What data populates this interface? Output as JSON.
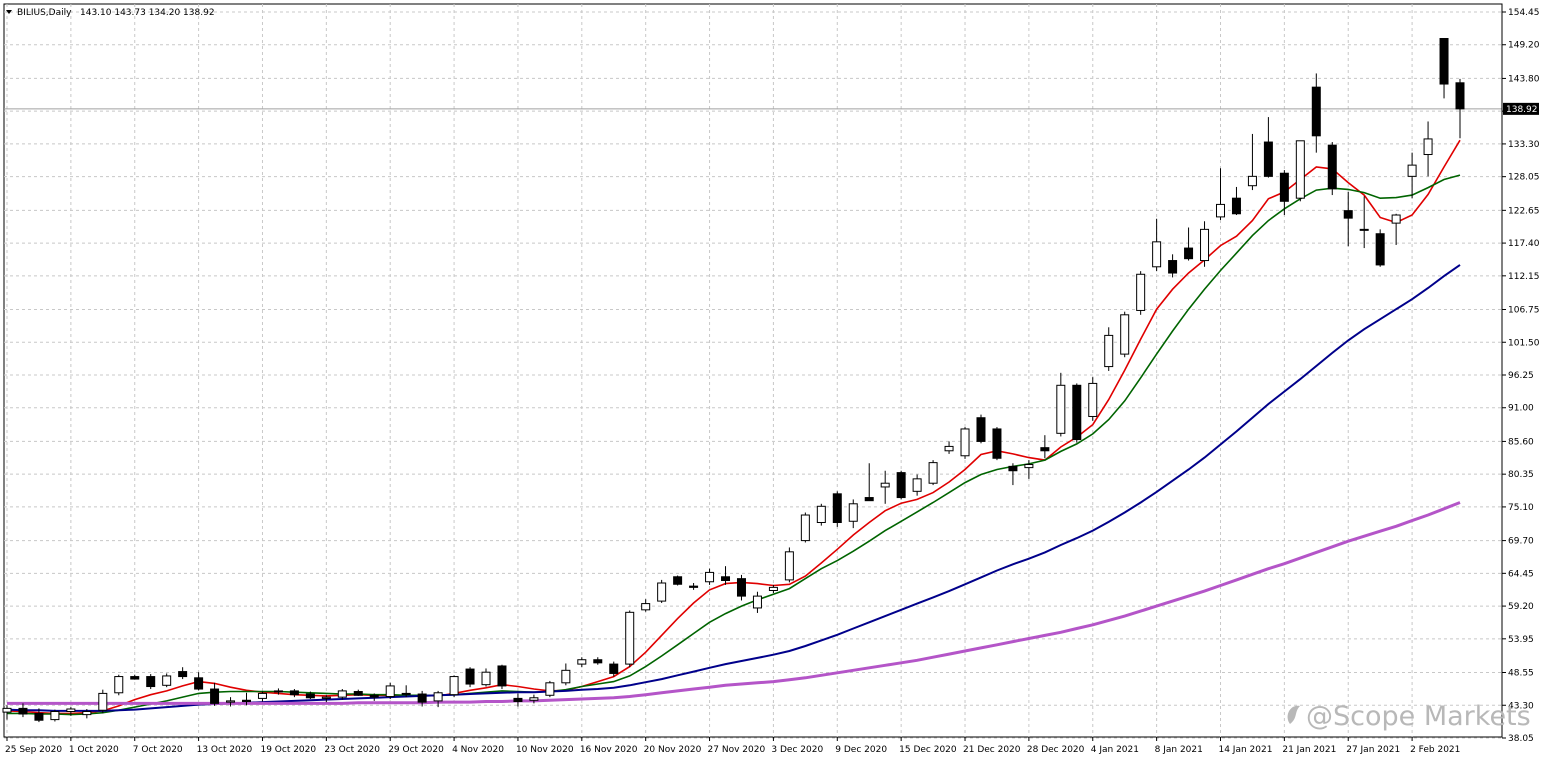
{
  "header": {
    "symbol": "BILIUS,Daily",
    "ohlc": "143.10 143.73 134.20 138.92"
  },
  "watermark": "@Scope Markets",
  "current_price_label": "138.92",
  "colors": {
    "background": "#ffffff",
    "grid": "#c8c8c8",
    "candle_body_bear": "#000000",
    "candle_body_bull": "#ffffff",
    "candle_outline": "#000000",
    "ma_fast": "#e00000",
    "ma_mid": "#006400",
    "ma_slow": "#00008b",
    "ma_long": "#b455c8",
    "price_line": "#a0a0a0"
  },
  "chart_data": {
    "type": "candlestick",
    "ylim": [
      38.05,
      154.45
    ],
    "grid": true,
    "y_ticks": [
      "154.45",
      "149.20",
      "143.80",
      "138.55",
      "133.30",
      "128.05",
      "122.65",
      "117.40",
      "112.15",
      "106.75",
      "101.50",
      "96.25",
      "91.00",
      "85.60",
      "80.35",
      "75.10",
      "69.70",
      "64.45",
      "59.20",
      "53.95",
      "48.55",
      "43.30",
      "38.05"
    ],
    "x_ticks": [
      {
        "index": 0,
        "label": "25 Sep 2020"
      },
      {
        "index": 4,
        "label": "1 Oct 2020"
      },
      {
        "index": 8,
        "label": "7 Oct 2020"
      },
      {
        "index": 12,
        "label": "13 Oct 2020"
      },
      {
        "index": 16,
        "label": "19 Oct 2020"
      },
      {
        "index": 20,
        "label": "23 Oct 2020"
      },
      {
        "index": 24,
        "label": "29 Oct 2020"
      },
      {
        "index": 28,
        "label": "4 Nov 2020"
      },
      {
        "index": 32,
        "label": "10 Nov 2020"
      },
      {
        "index": 36,
        "label": "16 Nov 2020"
      },
      {
        "index": 40,
        "label": "20 Nov 2020"
      },
      {
        "index": 44,
        "label": "27 Nov 2020"
      },
      {
        "index": 48,
        "label": "3 Dec 2020"
      },
      {
        "index": 52,
        "label": "9 Dec 2020"
      },
      {
        "index": 56,
        "label": "15 Dec 2020"
      },
      {
        "index": 60,
        "label": "21 Dec 2020"
      },
      {
        "index": 64,
        "label": "28 Dec 2020"
      },
      {
        "index": 68,
        "label": "4 Jan 2021"
      },
      {
        "index": 72,
        "label": "8 Jan 2021"
      },
      {
        "index": 76,
        "label": "14 Jan 2021"
      },
      {
        "index": 80,
        "label": "21 Jan 2021"
      },
      {
        "index": 84,
        "label": "27 Jan 2021"
      },
      {
        "index": 88,
        "label": "2 Feb 2021"
      }
    ],
    "candles": [
      {
        "o": 42.2,
        "h": 43.3,
        "l": 41.0,
        "c": 42.8
      },
      {
        "o": 42.8,
        "h": 43.6,
        "l": 41.4,
        "c": 41.9
      },
      {
        "o": 42.0,
        "h": 42.8,
        "l": 40.6,
        "c": 40.9
      },
      {
        "o": 41.0,
        "h": 42.6,
        "l": 40.7,
        "c": 42.3
      },
      {
        "o": 42.3,
        "h": 43.0,
        "l": 41.6,
        "c": 42.7
      },
      {
        "o": 41.8,
        "h": 42.7,
        "l": 41.2,
        "c": 42.3
      },
      {
        "o": 42.5,
        "h": 45.8,
        "l": 42.0,
        "c": 45.2
      },
      {
        "o": 45.3,
        "h": 48.2,
        "l": 44.9,
        "c": 47.9
      },
      {
        "o": 47.9,
        "h": 48.2,
        "l": 47.4,
        "c": 47.5
      },
      {
        "o": 47.9,
        "h": 48.3,
        "l": 45.9,
        "c": 46.3
      },
      {
        "o": 46.5,
        "h": 48.4,
        "l": 46.2,
        "c": 48.0
      },
      {
        "o": 48.7,
        "h": 49.4,
        "l": 47.5,
        "c": 47.9
      },
      {
        "o": 47.7,
        "h": 48.6,
        "l": 45.7,
        "c": 45.9
      },
      {
        "o": 45.9,
        "h": 46.9,
        "l": 43.2,
        "c": 43.6
      },
      {
        "o": 43.8,
        "h": 44.6,
        "l": 43.1,
        "c": 44.0
      },
      {
        "o": 44.1,
        "h": 45.3,
        "l": 43.3,
        "c": 43.9
      },
      {
        "o": 44.4,
        "h": 45.5,
        "l": 43.9,
        "c": 45.2
      },
      {
        "o": 45.6,
        "h": 46.0,
        "l": 45.0,
        "c": 45.5
      },
      {
        "o": 45.6,
        "h": 45.9,
        "l": 44.6,
        "c": 45.0
      },
      {
        "o": 45.1,
        "h": 45.5,
        "l": 44.3,
        "c": 44.5
      },
      {
        "o": 44.4,
        "h": 44.9,
        "l": 43.8,
        "c": 44.6
      },
      {
        "o": 44.6,
        "h": 45.9,
        "l": 44.2,
        "c": 45.6
      },
      {
        "o": 45.5,
        "h": 45.8,
        "l": 44.8,
        "c": 44.9
      },
      {
        "o": 44.9,
        "h": 45.2,
        "l": 44.0,
        "c": 44.6
      },
      {
        "o": 44.7,
        "h": 46.9,
        "l": 44.3,
        "c": 46.4
      },
      {
        "o": 45.2,
        "h": 46.5,
        "l": 44.6,
        "c": 45.1
      },
      {
        "o": 45.1,
        "h": 45.6,
        "l": 43.1,
        "c": 43.8
      },
      {
        "o": 44.0,
        "h": 45.6,
        "l": 43.0,
        "c": 45.3
      },
      {
        "o": 45.0,
        "h": 48.1,
        "l": 44.6,
        "c": 47.9
      },
      {
        "o": 49.1,
        "h": 49.4,
        "l": 46.2,
        "c": 46.7
      },
      {
        "o": 46.6,
        "h": 49.2,
        "l": 46.3,
        "c": 48.6
      },
      {
        "o": 49.6,
        "h": 49.8,
        "l": 45.9,
        "c": 46.4
      },
      {
        "o": 44.4,
        "h": 45.2,
        "l": 43.1,
        "c": 43.9
      },
      {
        "o": 44.1,
        "h": 45.0,
        "l": 43.6,
        "c": 44.5
      },
      {
        "o": 44.9,
        "h": 47.2,
        "l": 44.6,
        "c": 46.9
      },
      {
        "o": 46.9,
        "h": 50.0,
        "l": 46.5,
        "c": 48.9
      },
      {
        "o": 49.9,
        "h": 51.0,
        "l": 49.4,
        "c": 50.6
      },
      {
        "o": 50.6,
        "h": 51.0,
        "l": 49.8,
        "c": 50.1
      },
      {
        "o": 49.9,
        "h": 50.3,
        "l": 47.9,
        "c": 48.4
      },
      {
        "o": 49.9,
        "h": 58.5,
        "l": 49.4,
        "c": 58.2
      },
      {
        "o": 58.6,
        "h": 60.3,
        "l": 58.3,
        "c": 59.6
      },
      {
        "o": 60.0,
        "h": 63.4,
        "l": 59.7,
        "c": 62.9
      },
      {
        "o": 63.9,
        "h": 64.1,
        "l": 62.5,
        "c": 62.7
      },
      {
        "o": 62.4,
        "h": 62.9,
        "l": 61.8,
        "c": 62.2
      },
      {
        "o": 63.1,
        "h": 65.2,
        "l": 62.6,
        "c": 64.6
      },
      {
        "o": 63.9,
        "h": 65.6,
        "l": 62.6,
        "c": 63.3
      },
      {
        "o": 63.6,
        "h": 64.2,
        "l": 60.1,
        "c": 60.8
      },
      {
        "o": 58.9,
        "h": 61.5,
        "l": 58.1,
        "c": 60.8
      },
      {
        "o": 61.7,
        "h": 62.6,
        "l": 61.3,
        "c": 62.2
      },
      {
        "o": 63.4,
        "h": 68.6,
        "l": 63.0,
        "c": 67.9
      },
      {
        "o": 69.7,
        "h": 74.2,
        "l": 69.4,
        "c": 73.8
      },
      {
        "o": 72.6,
        "h": 75.6,
        "l": 72.1,
        "c": 75.2
      },
      {
        "o": 77.2,
        "h": 77.6,
        "l": 71.9,
        "c": 72.6
      },
      {
        "o": 72.8,
        "h": 76.3,
        "l": 71.7,
        "c": 75.6
      },
      {
        "o": 76.6,
        "h": 82.1,
        "l": 76.2,
        "c": 76.1
      },
      {
        "o": 78.3,
        "h": 80.9,
        "l": 75.6,
        "c": 78.9
      },
      {
        "o": 80.6,
        "h": 80.9,
        "l": 76.3,
        "c": 76.6
      },
      {
        "o": 77.6,
        "h": 80.3,
        "l": 76.9,
        "c": 79.6
      },
      {
        "o": 78.9,
        "h": 82.6,
        "l": 78.6,
        "c": 82.2
      },
      {
        "o": 84.1,
        "h": 85.6,
        "l": 83.6,
        "c": 84.8
      },
      {
        "o": 83.3,
        "h": 87.9,
        "l": 82.8,
        "c": 87.6
      },
      {
        "o": 89.4,
        "h": 89.9,
        "l": 85.3,
        "c": 85.6
      },
      {
        "o": 87.6,
        "h": 87.9,
        "l": 82.6,
        "c": 82.9
      },
      {
        "o": 81.6,
        "h": 82.1,
        "l": 78.6,
        "c": 80.9
      },
      {
        "o": 81.4,
        "h": 82.6,
        "l": 79.6,
        "c": 81.9
      },
      {
        "o": 84.6,
        "h": 86.6,
        "l": 82.9,
        "c": 84.1
      },
      {
        "o": 86.9,
        "h": 96.6,
        "l": 86.4,
        "c": 94.6
      },
      {
        "o": 94.6,
        "h": 94.9,
        "l": 85.4,
        "c": 85.9
      },
      {
        "o": 89.6,
        "h": 95.9,
        "l": 88.9,
        "c": 94.9
      },
      {
        "o": 97.6,
        "h": 103.9,
        "l": 96.9,
        "c": 102.6
      },
      {
        "o": 99.6,
        "h": 106.4,
        "l": 99.1,
        "c": 105.9
      },
      {
        "o": 106.6,
        "h": 112.9,
        "l": 105.9,
        "c": 112.4
      },
      {
        "o": 113.6,
        "h": 121.3,
        "l": 112.9,
        "c": 117.6
      },
      {
        "o": 114.6,
        "h": 115.6,
        "l": 111.9,
        "c": 112.6
      },
      {
        "o": 116.6,
        "h": 119.9,
        "l": 114.6,
        "c": 114.9
      },
      {
        "o": 114.6,
        "h": 120.9,
        "l": 113.6,
        "c": 119.6
      },
      {
        "o": 121.6,
        "h": 129.4,
        "l": 121.1,
        "c": 123.6
      },
      {
        "o": 124.6,
        "h": 126.4,
        "l": 121.9,
        "c": 122.1
      },
      {
        "o": 126.6,
        "h": 134.9,
        "l": 125.9,
        "c": 128.1
      },
      {
        "o": 133.6,
        "h": 137.6,
        "l": 127.9,
        "c": 128.1
      },
      {
        "o": 128.6,
        "h": 129.1,
        "l": 121.9,
        "c": 124.1
      },
      {
        "o": 124.6,
        "h": 133.8,
        "l": 124.1,
        "c": 133.8
      },
      {
        "o": 142.4,
        "h": 144.6,
        "l": 131.9,
        "c": 134.6
      },
      {
        "o": 133.1,
        "h": 133.6,
        "l": 125.1,
        "c": 126.1
      },
      {
        "o": 122.6,
        "h": 125.6,
        "l": 116.9,
        "c": 121.4
      },
      {
        "o": 119.6,
        "h": 124.9,
        "l": 116.6,
        "c": 119.6
      },
      {
        "o": 118.9,
        "h": 119.6,
        "l": 113.6,
        "c": 113.9
      },
      {
        "o": 120.6,
        "h": 122.1,
        "l": 117.1,
        "c": 121.9
      },
      {
        "o": 128.1,
        "h": 131.9,
        "l": 124.6,
        "c": 129.9
      },
      {
        "o": 131.6,
        "h": 136.9,
        "l": 128.1,
        "c": 134.1
      },
      {
        "o": 150.2,
        "h": 150.2,
        "l": 140.6,
        "c": 142.9
      },
      {
        "o": 143.1,
        "h": 143.73,
        "l": 134.2,
        "c": 138.92
      }
    ],
    "moving_averages": [
      {
        "color": "ma_fast",
        "values": [
          42.4,
          42.3,
          42.1,
          42.0,
          42.0,
          42.1,
          42.4,
          43.2,
          44.2,
          45.0,
          45.6,
          46.4,
          47.1,
          46.8,
          46.2,
          45.7,
          45.4,
          45.2,
          45.0,
          44.9,
          44.8,
          44.9,
          45.0,
          44.9,
          44.9,
          44.9,
          44.9,
          44.8,
          45.2,
          45.7,
          46.1,
          46.6,
          46.3,
          45.9,
          45.6,
          45.7,
          46.3,
          47.1,
          47.9,
          49.5,
          51.8,
          54.5,
          57.2,
          59.7,
          61.8,
          62.8,
          63.0,
          62.8,
          62.5,
          62.7,
          64.0,
          66.1,
          68.3,
          70.6,
          72.6,
          74.5,
          75.7,
          76.3,
          77.4,
          79.1,
          81.1,
          83.5,
          84.1,
          83.6,
          83.0,
          82.6,
          84.7,
          86.3,
          88.3,
          92.3,
          97.0,
          102.0,
          106.8,
          110.0,
          112.6,
          114.7,
          117.0,
          118.5,
          121.0,
          124.5,
          125.6,
          127.6,
          129.6,
          129.3,
          127.1,
          125.1,
          121.5,
          120.7,
          121.9,
          125.2,
          129.6,
          133.9
        ]
      },
      {
        "color": "ma_mid",
        "values": [
          42.0,
          42.0,
          41.9,
          41.9,
          41.8,
          41.9,
          42.1,
          42.5,
          43.0,
          43.5,
          44.0,
          44.6,
          45.2,
          45.4,
          45.5,
          45.5,
          45.5,
          45.5,
          45.4,
          45.3,
          45.2,
          45.1,
          45.1,
          45.0,
          45.0,
          44.9,
          44.9,
          44.9,
          45.0,
          45.2,
          45.4,
          45.6,
          45.5,
          45.4,
          45.5,
          45.8,
          46.3,
          46.7,
          47.1,
          48.0,
          49.5,
          51.2,
          53.0,
          54.8,
          56.6,
          58.0,
          59.2,
          60.2,
          61.1,
          62.0,
          63.6,
          65.2,
          66.5,
          68.0,
          69.6,
          71.3,
          72.8,
          74.3,
          75.8,
          77.4,
          79.0,
          80.3,
          81.1,
          81.6,
          82.0,
          82.6,
          84.0,
          85.2,
          86.8,
          89.1,
          92.1,
          95.8,
          99.6,
          103.3,
          106.8,
          110.0,
          113.0,
          115.8,
          118.6,
          121.0,
          122.9,
          124.5,
          125.9,
          126.2,
          126.0,
          125.5,
          124.6,
          124.7,
          125.1,
          126.3,
          127.6,
          128.3
        ]
      },
      {
        "color": "ma_slow",
        "values": [
          42.6,
          42.5,
          42.5,
          42.4,
          42.4,
          42.4,
          42.4,
          42.5,
          42.6,
          42.8,
          43.0,
          43.2,
          43.4,
          43.5,
          43.6,
          43.7,
          43.8,
          43.9,
          44.0,
          44.1,
          44.2,
          44.3,
          44.4,
          44.5,
          44.6,
          44.7,
          44.8,
          44.9,
          45.0,
          45.1,
          45.2,
          45.3,
          45.4,
          45.4,
          45.5,
          45.6,
          45.8,
          45.9,
          46.1,
          46.5,
          47.0,
          47.5,
          48.1,
          48.7,
          49.3,
          49.9,
          50.4,
          50.9,
          51.4,
          52.0,
          52.8,
          53.7,
          54.6,
          55.6,
          56.6,
          57.6,
          58.6,
          59.6,
          60.6,
          61.6,
          62.7,
          63.8,
          64.9,
          65.9,
          66.8,
          67.8,
          69.0,
          70.1,
          71.3,
          72.7,
          74.2,
          75.8,
          77.5,
          79.3,
          81.1,
          83.0,
          85.1,
          87.2,
          89.4,
          91.6,
          93.6,
          95.6,
          97.7,
          99.8,
          101.8,
          103.6,
          105.2,
          106.8,
          108.4,
          110.2,
          112.1,
          113.9
        ]
      },
      {
        "color": "ma_long",
        "values": [
          43.6,
          43.6,
          43.6,
          43.6,
          43.6,
          43.6,
          43.6,
          43.6,
          43.6,
          43.6,
          43.6,
          43.6,
          43.6,
          43.6,
          43.6,
          43.6,
          43.6,
          43.6,
          43.6,
          43.6,
          43.6,
          43.6,
          43.7,
          43.7,
          43.7,
          43.7,
          43.7,
          43.8,
          43.8,
          43.8,
          43.9,
          43.9,
          44.0,
          44.0,
          44.1,
          44.2,
          44.3,
          44.4,
          44.5,
          44.7,
          45.0,
          45.3,
          45.6,
          45.9,
          46.2,
          46.5,
          46.7,
          46.9,
          47.1,
          47.4,
          47.7,
          48.1,
          48.5,
          48.9,
          49.3,
          49.7,
          50.1,
          50.5,
          51.0,
          51.5,
          52.0,
          52.5,
          53.0,
          53.5,
          54.0,
          54.5,
          55.0,
          55.6,
          56.2,
          56.9,
          57.6,
          58.4,
          59.2,
          60.0,
          60.8,
          61.6,
          62.5,
          63.4,
          64.3,
          65.2,
          66.0,
          66.9,
          67.8,
          68.7,
          69.6,
          70.4,
          71.2,
          72.0,
          72.9,
          73.8,
          74.8,
          75.8
        ]
      }
    ]
  }
}
